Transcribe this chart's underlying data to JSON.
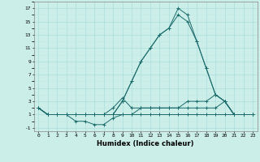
{
  "title": "",
  "xlabel": "Humidex (Indice chaleur)",
  "ylabel": "",
  "bg_color": "#cceee8",
  "line_color": "#1a6b6b",
  "grid_major_color": "#aadddd",
  "grid_minor_color": "#c2e8e4",
  "xlim": [
    -0.5,
    23.5
  ],
  "ylim": [
    -1.5,
    18
  ],
  "xticks": [
    0,
    1,
    2,
    3,
    4,
    5,
    6,
    7,
    8,
    9,
    10,
    11,
    12,
    13,
    14,
    15,
    16,
    17,
    18,
    19,
    20,
    21,
    22,
    23
  ],
  "yticks": [
    -1,
    1,
    3,
    5,
    7,
    9,
    11,
    13,
    15,
    17
  ],
  "series": [
    [
      2,
      1,
      1,
      1,
      1,
      1,
      1,
      1,
      1,
      3,
      6,
      9,
      11,
      13,
      14,
      16,
      15,
      12,
      8,
      4,
      3,
      1,
      1,
      1
    ],
    [
      2,
      1,
      1,
      1,
      1,
      1,
      1,
      1,
      1,
      3,
      6,
      9,
      11,
      13,
      14,
      17,
      16,
      12,
      8,
      4,
      3,
      1,
      1,
      1
    ],
    [
      2,
      1,
      1,
      1,
      0,
      0,
      -0.5,
      -0.5,
      0.5,
      1,
      1,
      2,
      2,
      2,
      2,
      2,
      2,
      2,
      2,
      2,
      3,
      1,
      1,
      1
    ],
    [
      2,
      1,
      1,
      1,
      1,
      1,
      1,
      1,
      2,
      3.5,
      2,
      2,
      2,
      2,
      2,
      2,
      3,
      3,
      3,
      4,
      3,
      1,
      1,
      1
    ],
    [
      2,
      1,
      1,
      1,
      1,
      1,
      1,
      1,
      1,
      1,
      1,
      1,
      1,
      1,
      1,
      1,
      1,
      1,
      1,
      1,
      1,
      1,
      1,
      1
    ]
  ]
}
